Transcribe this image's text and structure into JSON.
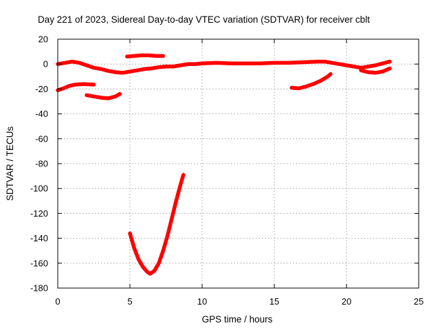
{
  "chart_data": {
    "type": "line",
    "title": "Day 221 of 2023, Sidereal Day-to-day VTEC variation (SDTVAR) for receiver cblt",
    "xlabel": "GPS time / hours",
    "ylabel": "SDTVAR / TECUs",
    "xlim": [
      0,
      25
    ],
    "ylim": [
      -180,
      20
    ],
    "xticks": [
      0,
      5,
      10,
      15,
      20,
      25
    ],
    "yticks": [
      20,
      0,
      -20,
      -40,
      -60,
      -80,
      -100,
      -120,
      -140,
      -160,
      -180
    ],
    "grid": true,
    "legend": "none",
    "color": "#ff0000",
    "series": [
      {
        "name": "trace-main",
        "points": [
          [
            0,
            0
          ],
          [
            0.5,
            1
          ],
          [
            1,
            2
          ],
          [
            1.5,
            1
          ],
          [
            2,
            -1
          ],
          [
            2.5,
            -3
          ],
          [
            3,
            -4
          ],
          [
            3.5,
            -5.5
          ],
          [
            4,
            -6.5
          ],
          [
            4.5,
            -7
          ],
          [
            5,
            -6
          ],
          [
            5.5,
            -5
          ],
          [
            6,
            -4
          ],
          [
            6.5,
            -3.5
          ],
          [
            7,
            -2.5
          ],
          [
            7.5,
            -2
          ],
          [
            8,
            -2
          ],
          [
            8.5,
            -1
          ],
          [
            9,
            0
          ],
          [
            9.5,
            0
          ],
          [
            10,
            0.5
          ],
          [
            11,
            1
          ],
          [
            12,
            0.5
          ],
          [
            13,
            0.5
          ],
          [
            14,
            0.5
          ],
          [
            15,
            1
          ],
          [
            16,
            1
          ],
          [
            17,
            1.5
          ],
          [
            18,
            2
          ],
          [
            18.5,
            2
          ],
          [
            19,
            1
          ],
          [
            19.5,
            0
          ],
          [
            20,
            -1
          ],
          [
            20.5,
            -2
          ],
          [
            21,
            -3
          ],
          [
            21.5,
            -2
          ],
          [
            22,
            -1
          ],
          [
            22.5,
            0.5
          ],
          [
            23,
            2
          ]
        ]
      },
      {
        "name": "trace-lower-right",
        "points": [
          [
            21,
            -5
          ],
          [
            21.5,
            -6.5
          ],
          [
            22,
            -7
          ],
          [
            22.5,
            -6
          ],
          [
            23,
            -3.5
          ]
        ]
      },
      {
        "name": "trace-left-low",
        "points": [
          [
            0,
            -21
          ],
          [
            0.4,
            -19.5
          ],
          [
            0.8,
            -17.5
          ],
          [
            1.2,
            -16.5
          ],
          [
            1.8,
            -16
          ],
          [
            2.5,
            -16.5
          ]
        ]
      },
      {
        "name": "trace-left-mid",
        "points": [
          [
            2,
            -25
          ],
          [
            2.5,
            -26
          ],
          [
            3,
            -27
          ],
          [
            3.5,
            -27.5
          ],
          [
            4,
            -26
          ],
          [
            4.3,
            -24
          ]
        ]
      },
      {
        "name": "trace-upper-mid",
        "points": [
          [
            4.8,
            6
          ],
          [
            5.3,
            6.5
          ],
          [
            5.8,
            7
          ],
          [
            6.3,
            7
          ],
          [
            6.8,
            6.5
          ],
          [
            7.3,
            6.5
          ]
        ]
      },
      {
        "name": "trace-right-low",
        "points": [
          [
            16.2,
            -19
          ],
          [
            16.7,
            -19.5
          ],
          [
            17.2,
            -18
          ],
          [
            17.7,
            -16
          ],
          [
            18.2,
            -13.5
          ],
          [
            18.7,
            -10
          ],
          [
            18.9,
            -8
          ]
        ]
      },
      {
        "name": "trace-dip",
        "points": [
          [
            5,
            -136
          ],
          [
            5.3,
            -148
          ],
          [
            5.6,
            -157
          ],
          [
            5.9,
            -163
          ],
          [
            6.2,
            -167
          ],
          [
            6.4,
            -168.5
          ],
          [
            6.7,
            -166
          ],
          [
            7,
            -160
          ],
          [
            7.3,
            -150
          ],
          [
            7.6,
            -138
          ],
          [
            7.9,
            -124
          ],
          [
            8.2,
            -110
          ],
          [
            8.5,
            -97
          ],
          [
            8.7,
            -89
          ]
        ]
      }
    ]
  }
}
